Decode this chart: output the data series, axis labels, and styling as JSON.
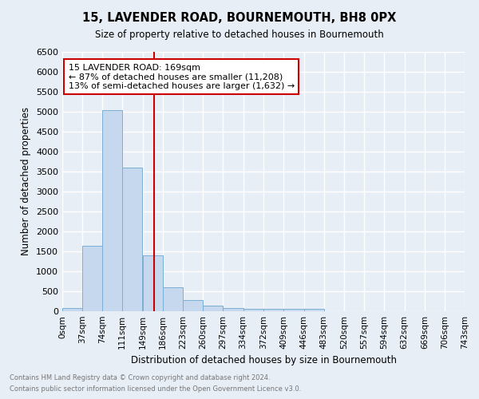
{
  "title": "15, LAVENDER ROAD, BOURNEMOUTH, BH8 0PX",
  "subtitle": "Size of property relative to detached houses in Bournemouth",
  "xlabel": "Distribution of detached houses by size in Bournemouth",
  "ylabel": "Number of detached properties",
  "footnote1": "Contains HM Land Registry data © Crown copyright and database right 2024.",
  "footnote2": "Contains public sector information licensed under the Open Government Licence v3.0.",
  "bin_labels": [
    "0sqm",
    "37sqm",
    "74sqm",
    "111sqm",
    "149sqm",
    "186sqm",
    "223sqm",
    "260sqm",
    "297sqm",
    "334sqm",
    "372sqm",
    "409sqm",
    "446sqm",
    "483sqm",
    "520sqm",
    "557sqm",
    "594sqm",
    "632sqm",
    "669sqm",
    "706sqm",
    "743sqm"
  ],
  "bin_edges": [
    0,
    37,
    74,
    111,
    149,
    186,
    223,
    260,
    297,
    334,
    372,
    409,
    446,
    483,
    520,
    557,
    594,
    632,
    669,
    706,
    743
  ],
  "bar_heights": [
    75,
    1650,
    5050,
    3600,
    1400,
    600,
    280,
    145,
    90,
    60,
    55,
    55,
    55,
    0,
    0,
    0,
    0,
    0,
    0,
    0
  ],
  "bar_color": "#c5d8ee",
  "bar_edge_color": "#7aafd4",
  "vline_x": 169,
  "vline_color": "#cc0000",
  "ylim": [
    0,
    6500
  ],
  "yticks": [
    0,
    500,
    1000,
    1500,
    2000,
    2500,
    3000,
    3500,
    4000,
    4500,
    5000,
    5500,
    6000,
    6500
  ],
  "annotation_title": "15 LAVENDER ROAD: 169sqm",
  "annotation_line1": "← 87% of detached houses are smaller (11,208)",
  "annotation_line2": "13% of semi-detached houses are larger (1,632) →",
  "background_color": "#e8eef6",
  "grid_color": "#ffffff"
}
